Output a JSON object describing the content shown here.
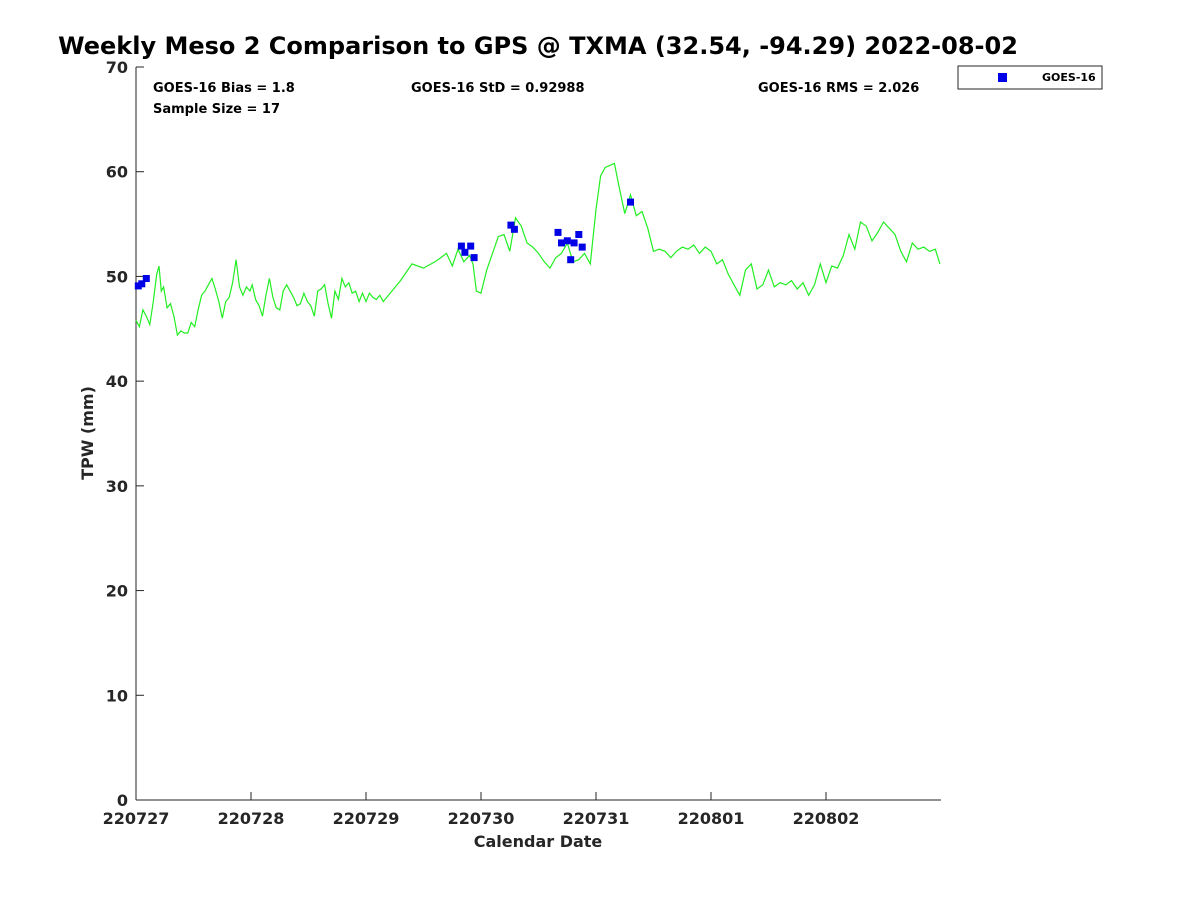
{
  "chart_data": {
    "type": "scatter",
    "title": "Weekly Meso 2 Comparison to GPS @ TXMA (32.54, -94.29) 2022-08-02",
    "xlabel": "Calendar Date",
    "ylabel": "TPW (mm)",
    "xlim": [
      0,
      7
    ],
    "ylim": [
      0,
      70
    ],
    "x_ticks": [
      0,
      1,
      2,
      3,
      4,
      5,
      6
    ],
    "x_tick_labels": [
      "220727",
      "220728",
      "220729",
      "220730",
      "220731",
      "220801",
      "220802"
    ],
    "y_ticks": [
      0,
      10,
      20,
      30,
      40,
      50,
      60,
      70
    ],
    "y_tick_labels": [
      "0",
      "10",
      "20",
      "30",
      "40",
      "50",
      "60",
      "70"
    ],
    "grid": false,
    "legend_position": "top-right",
    "stats": {
      "bias": "GOES-16 Bias = 1.8",
      "std": "GOES-16 StD = 0.92988",
      "rms": "GOES-16 RMS = 2.026",
      "sample": "Sample Size = 17"
    },
    "series": [
      {
        "name": "GOES-16",
        "kind": "markers",
        "color": "#0000e6",
        "x": [
          0.02,
          0.05,
          0.09,
          2.83,
          2.86,
          2.91,
          2.94,
          3.26,
          3.29,
          3.67,
          3.7,
          3.75,
          3.78,
          3.81,
          3.85,
          3.88,
          4.3
        ],
        "y": [
          49.1,
          49.3,
          49.8,
          52.9,
          52.3,
          52.9,
          51.8,
          54.9,
          54.5,
          54.2,
          53.2,
          53.4,
          51.6,
          53.2,
          54.0,
          52.8,
          57.1
        ]
      },
      {
        "kind": "line",
        "color": "#22ee22",
        "x": [
          0,
          0.03,
          0.06,
          0.09,
          0.12,
          0.15,
          0.18,
          0.2,
          0.22,
          0.24,
          0.27,
          0.3,
          0.33,
          0.36,
          0.39,
          0.42,
          0.45,
          0.48,
          0.51,
          0.54,
          0.57,
          0.6,
          0.63,
          0.66,
          0.69,
          0.72,
          0.75,
          0.78,
          0.81,
          0.84,
          0.87,
          0.9,
          0.93,
          0.96,
          0.99,
          1.01,
          1.04,
          1.07,
          1.1,
          1.13,
          1.16,
          1.19,
          1.22,
          1.25,
          1.28,
          1.31,
          1.34,
          1.37,
          1.4,
          1.43,
          1.46,
          1.49,
          1.52,
          1.55,
          1.58,
          1.61,
          1.64,
          1.67,
          1.7,
          1.73,
          1.76,
          1.79,
          1.82,
          1.85,
          1.88,
          1.91,
          1.94,
          1.97,
          2.0,
          2.03,
          2.06,
          2.09,
          2.12,
          2.15,
          2.18,
          2.21,
          2.24,
          2.27,
          2.3,
          2.4,
          2.5,
          2.6,
          2.65,
          2.7,
          2.75,
          2.8,
          2.85,
          2.9,
          2.93,
          2.96,
          3.0,
          3.05,
          3.1,
          3.15,
          3.2,
          3.25,
          3.3,
          3.35,
          3.4,
          3.45,
          3.5,
          3.55,
          3.6,
          3.65,
          3.7,
          3.75,
          3.8,
          3.85,
          3.9,
          3.95,
          4.0,
          4.04,
          4.08,
          4.12,
          4.16,
          4.2,
          4.25,
          4.3,
          4.35,
          4.4,
          4.45,
          4.5,
          4.55,
          4.6,
          4.65,
          4.7,
          4.75,
          4.8,
          4.85,
          4.9,
          4.95,
          5.0,
          5.05,
          5.1,
          5.15,
          5.2,
          5.25,
          5.3,
          5.35,
          5.4,
          5.45,
          5.5,
          5.55,
          5.6,
          5.65,
          5.7,
          5.75,
          5.8,
          5.85,
          5.9,
          5.95,
          6.0,
          6.05,
          6.1,
          6.15,
          6.2,
          6.25,
          6.3,
          6.35,
          6.4,
          6.45,
          6.5,
          6.55,
          6.6,
          6.65,
          6.7,
          6.75,
          6.8,
          6.85,
          6.9,
          6.95,
          6.99
        ],
        "y": [
          45.8,
          45.2,
          46.8,
          46.2,
          45.4,
          47.6,
          50.2,
          51.0,
          48.6,
          49.0,
          47.0,
          47.4,
          46.2,
          44.4,
          44.8,
          44.6,
          44.6,
          45.6,
          45.2,
          46.8,
          48.2,
          48.6,
          49.2,
          49.8,
          48.8,
          47.6,
          46.0,
          47.6,
          48.0,
          49.4,
          51.6,
          49.0,
          48.2,
          49.0,
          48.6,
          49.2,
          47.8,
          47.2,
          46.2,
          48.2,
          49.8,
          48.0,
          47.0,
          46.8,
          48.6,
          49.2,
          48.6,
          48.0,
          47.2,
          47.4,
          48.4,
          47.6,
          47.2,
          46.2,
          48.6,
          48.8,
          49.2,
          47.4,
          46.0,
          48.6,
          47.8,
          49.8,
          49.0,
          49.4,
          48.4,
          48.6,
          47.6,
          48.4,
          47.6,
          48.4,
          48.0,
          47.8,
          48.2,
          47.6,
          48.0,
          48.4,
          48.8,
          49.2,
          49.6,
          51.2,
          50.8,
          51.4,
          51.8,
          52.2,
          51.0,
          52.6,
          51.4,
          52.0,
          51.2,
          48.6,
          48.4,
          50.6,
          52.2,
          53.8,
          54.0,
          52.4,
          55.6,
          54.8,
          53.2,
          52.8,
          52.2,
          51.4,
          50.8,
          51.8,
          52.2,
          53.2,
          51.4,
          51.6,
          52.2,
          51.2,
          56.4,
          59.6,
          60.4,
          60.6,
          60.8,
          58.6,
          56.0,
          57.8,
          55.8,
          56.2,
          54.6,
          52.4,
          52.6,
          52.4,
          51.8,
          52.4,
          52.8,
          52.6,
          53.0,
          52.2,
          52.8,
          52.4,
          51.2,
          51.6,
          50.2,
          49.2,
          48.2,
          50.6,
          51.2,
          48.8,
          49.2,
          50.6,
          49.0,
          49.4,
          49.2,
          49.6,
          48.8,
          49.4,
          48.2,
          49.2,
          51.2,
          49.4,
          51.0,
          50.8,
          52.0,
          54.0,
          52.6,
          55.2,
          54.8,
          53.4,
          54.2,
          55.2,
          54.6,
          54.0,
          52.4,
          51.4,
          53.2,
          52.6,
          52.8,
          52.4,
          52.6,
          51.2
        ]
      }
    ]
  }
}
